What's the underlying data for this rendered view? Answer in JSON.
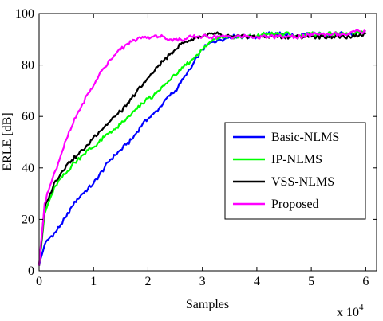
{
  "chart_data": {
    "type": "line",
    "title": "",
    "xlabel": "Samples",
    "ylabel": "ERLE [dB]",
    "x_multiplier_label": "x 10",
    "x_multiplier_exponent": "4",
    "xlim": [
      0,
      6.2
    ],
    "ylim": [
      0,
      100
    ],
    "xticks": [
      0,
      1,
      2,
      3,
      4,
      5,
      6
    ],
    "xtick_labels": [
      "0",
      "1",
      "2",
      "3",
      "4",
      "5",
      "6"
    ],
    "yticks": [
      0,
      20,
      40,
      60,
      80,
      100
    ],
    "ytick_labels": [
      "0",
      "20",
      "40",
      "60",
      "80",
      "100"
    ],
    "grid": false,
    "legend_position": "center-right",
    "x": [
      0,
      0.1,
      0.2,
      0.3,
      0.4,
      0.5,
      0.6,
      0.7,
      0.8,
      0.9,
      1.0,
      1.1,
      1.2,
      1.3,
      1.4,
      1.5,
      1.6,
      1.7,
      1.8,
      1.9,
      2.0,
      2.1,
      2.2,
      2.3,
      2.4,
      2.5,
      2.6,
      2.7,
      2.8,
      2.9,
      3.0,
      3.1,
      3.2,
      3.3,
      3.4,
      3.5,
      3.6,
      3.7,
      3.8,
      3.9,
      4.0,
      4.1,
      4.2,
      4.3,
      4.4,
      4.5,
      4.6,
      4.7,
      4.8,
      4.9,
      5.0,
      5.1,
      5.2,
      5.3,
      5.4,
      5.5,
      5.6,
      5.7,
      5.8,
      5.9,
      6.0
    ],
    "series": [
      {
        "name": "Basic-NLMS",
        "color": "#0000ff",
        "values": [
          2,
          10,
          13,
          15,
          18,
          21,
          25,
          28,
          30,
          32,
          34,
          37,
          40,
          43,
          45,
          47,
          49,
          51,
          54,
          57,
          59,
          61,
          63,
          66,
          68,
          70,
          73,
          76,
          79,
          83,
          86,
          88,
          89,
          90,
          90,
          91,
          91,
          91,
          91,
          91,
          91,
          91,
          92,
          92,
          92,
          92,
          92,
          91,
          91,
          92,
          92,
          92,
          92,
          92,
          92,
          92,
          92,
          92,
          92,
          93,
          93
        ]
      },
      {
        "name": "IP-NLMS",
        "color": "#00ff00",
        "values": [
          2,
          22,
          28,
          33,
          36,
          38,
          41,
          43,
          45,
          47,
          48,
          50,
          52,
          54,
          55,
          57,
          59,
          61,
          63,
          65,
          67,
          68,
          70,
          72,
          74,
          76,
          78,
          80,
          82,
          84,
          86,
          88,
          90,
          91,
          91,
          91,
          91,
          91,
          91,
          91,
          91,
          92,
          92,
          92,
          92,
          92,
          92,
          91,
          91,
          92,
          92,
          92,
          92,
          92,
          92,
          92,
          92,
          92,
          92,
          93,
          93
        ]
      },
      {
        "name": "VSS-NLMS",
        "color": "#000000",
        "values": [
          2,
          24,
          30,
          35,
          38,
          41,
          43,
          45,
          47,
          49,
          52,
          54,
          56,
          58,
          60,
          62,
          64,
          67,
          70,
          72,
          75,
          77,
          80,
          82,
          84,
          86,
          88,
          89,
          90,
          91,
          91,
          92,
          92,
          92,
          91,
          91,
          91,
          91,
          91,
          91,
          91,
          91,
          91,
          91,
          91,
          91,
          91,
          91,
          91,
          91,
          91,
          91,
          91,
          91,
          91,
          91,
          91,
          91,
          91,
          92,
          92
        ]
      },
      {
        "name": "Proposed",
        "color": "#ff00ff",
        "values": [
          2,
          26,
          33,
          39,
          45,
          51,
          56,
          61,
          65,
          69,
          72,
          76,
          79,
          82,
          84,
          86,
          88,
          89,
          90,
          91,
          91,
          91,
          91,
          91,
          90,
          90,
          90,
          90,
          91,
          91,
          91,
          91,
          91,
          91,
          91,
          91,
          91,
          91,
          91,
          91,
          91,
          91,
          91,
          91,
          91,
          91,
          91,
          91,
          91,
          91,
          92,
          92,
          92,
          92,
          92,
          92,
          92,
          92,
          93,
          93,
          93
        ]
      }
    ]
  }
}
